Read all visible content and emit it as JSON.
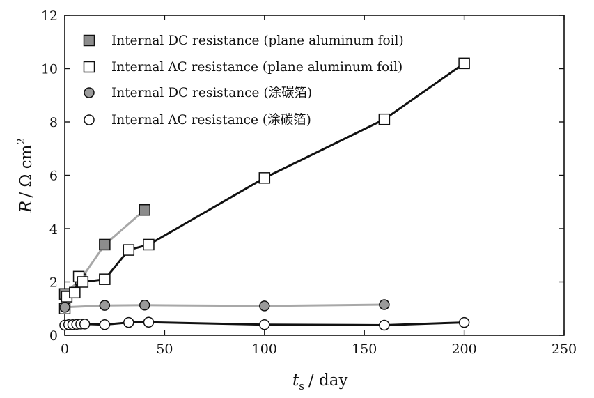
{
  "chart_data": {
    "type": "line",
    "xlabel": {
      "symbol": "t",
      "subscript": "s",
      "unit": "/ day"
    },
    "ylabel": {
      "symbol": "R",
      "unit": "/ Ω cm",
      "superscript": "2"
    },
    "xlim": [
      0,
      250
    ],
    "ylim": [
      0,
      12
    ],
    "xticks": [
      0,
      50,
      100,
      150,
      200,
      250
    ],
    "yticks": [
      0,
      2,
      4,
      6,
      8,
      10,
      12
    ],
    "grid": false,
    "legend_position": "top-left",
    "series": [
      {
        "name": "Internal DC resistance (plane aluminum foil)",
        "marker": "square",
        "marker_fill": "#8c8c8c",
        "line_color": "#a8a8a8",
        "x": [
          0,
          8,
          20,
          40
        ],
        "y": [
          1.55,
          2.1,
          3.4,
          4.7
        ]
      },
      {
        "name": "Internal AC resistance (plane aluminum foil)",
        "marker": "square",
        "marker_fill": "#ffffff",
        "line_color": "#111111",
        "x": [
          0,
          1,
          5,
          7,
          9,
          20,
          32,
          42,
          100,
          160,
          200
        ],
        "y": [
          1.0,
          1.45,
          1.6,
          2.2,
          2.0,
          2.1,
          3.2,
          3.4,
          5.9,
          8.1,
          10.2
        ]
      },
      {
        "name": "Internal DC resistance (涂碳箔)",
        "marker": "circle",
        "marker_fill": "#9a9a9a",
        "line_color": "#a8a8a8",
        "x": [
          0,
          20,
          40,
          100,
          160
        ],
        "y": [
          1.05,
          1.12,
          1.13,
          1.1,
          1.15
        ]
      },
      {
        "name": "Internal AC resistance (涂碳箔)",
        "marker": "circle",
        "marker_fill": "#ffffff",
        "line_color": "#111111",
        "x": [
          0,
          2,
          4,
          6,
          8,
          10,
          20,
          32,
          42,
          100,
          160,
          200
        ],
        "y": [
          0.38,
          0.4,
          0.4,
          0.41,
          0.42,
          0.42,
          0.4,
          0.48,
          0.49,
          0.4,
          0.38,
          0.48
        ]
      }
    ]
  }
}
